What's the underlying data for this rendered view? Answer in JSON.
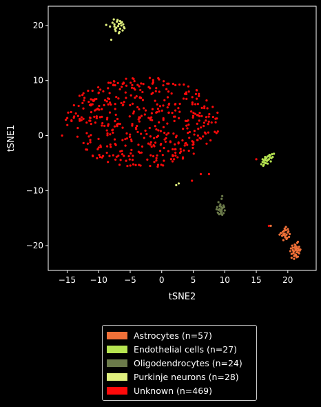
{
  "chart_data": {
    "type": "scatter",
    "xlabel": "tSNE2",
    "ylabel": "tSNE1",
    "xlim": [
      -18,
      24.5
    ],
    "ylim": [
      -24.5,
      23.5
    ],
    "xticks": [
      -15,
      -10,
      -5,
      0,
      5,
      10,
      15,
      20
    ],
    "yticks": [
      -20,
      -10,
      0,
      10,
      20
    ],
    "grid": false,
    "legend_position": "below",
    "series": [
      {
        "name": "Astrocytes (n=57)",
        "color": "#f07038",
        "x": [
          19.2,
          19.5,
          19.8,
          20.0,
          19.6,
          19.3,
          19.9,
          20.1,
          19.4,
          19.7,
          20.2,
          19.5,
          19.1,
          19.8,
          20.0,
          19.6,
          18.9,
          19.3,
          20.3,
          19.7,
          19.4,
          18.7,
          20.5,
          20.8,
          21.0,
          21.2,
          21.4,
          21.6,
          21.8,
          22.0,
          20.6,
          20.9,
          21.1,
          21.3,
          21.5,
          21.7,
          21.9,
          20.7,
          21.0,
          21.2,
          21.4,
          21.6,
          20.4,
          20.8,
          21.1,
          21.3,
          21.5,
          21.7,
          20.6,
          21.0,
          21.2,
          21.4,
          21.8,
          20.9,
          21.3,
          21.6,
          17.3
        ],
        "y": [
          -17.5,
          -17.8,
          -18.0,
          -17.6,
          -18.3,
          -17.9,
          -18.6,
          -17.4,
          -18.1,
          -17.2,
          -18.4,
          -16.9,
          -18.2,
          -18.8,
          -17.0,
          -18.5,
          -17.7,
          -19.0,
          -17.9,
          -16.6,
          -17.3,
          -18.0,
          -20.5,
          -20.8,
          -21.0,
          -20.6,
          -21.2,
          -20.9,
          -21.4,
          -20.7,
          -21.5,
          -21.1,
          -20.3,
          -21.7,
          -20.5,
          -21.3,
          -20.9,
          -20.0,
          -21.9,
          -21.6,
          -20.2,
          -22.0,
          -21.0,
          -20.4,
          -19.8,
          -21.8,
          -19.5,
          -20.6,
          -22.2,
          -22.4,
          -19.9,
          -22.1,
          -20.2,
          -21.4,
          -20.8,
          -19.3,
          -16.4
        ]
      },
      {
        "name": "Endothelial cells (n=27)",
        "color": "#b6e451",
        "x": [
          15.8,
          16.0,
          16.2,
          16.4,
          16.6,
          16.8,
          17.0,
          17.2,
          17.4,
          17.6,
          16.1,
          16.3,
          16.5,
          16.7,
          16.9,
          17.1,
          17.3,
          16.0,
          16.4,
          16.8,
          17.2,
          16.2,
          16.6,
          17.0,
          17.5,
          16.5,
          17.8
        ],
        "y": [
          -5.2,
          -4.8,
          -4.5,
          -4.2,
          -4.0,
          -3.8,
          -4.3,
          -3.6,
          -4.1,
          -3.9,
          -5.5,
          -4.9,
          -5.0,
          -4.6,
          -4.4,
          -3.5,
          -4.7,
          -4.3,
          -3.9,
          -5.1,
          -4.0,
          -5.3,
          -4.1,
          -3.7,
          -3.4,
          -4.5,
          -3.3
        ]
      },
      {
        "name": "Oligodendrocytes (n=24)",
        "color": "#6b7a4a",
        "x": [
          8.8,
          9.0,
          9.2,
          9.4,
          9.6,
          9.8,
          10.0,
          9.1,
          9.3,
          9.5,
          9.7,
          8.9,
          9.2,
          9.4,
          9.6,
          9.9,
          9.0,
          9.3,
          9.5,
          8.7,
          9.8,
          9.4,
          9.6,
          9.5
        ],
        "y": [
          -13.0,
          -13.5,
          -12.8,
          -13.9,
          -13.2,
          -14.1,
          -13.6,
          -14.3,
          -12.5,
          -13.8,
          -13.1,
          -14.0,
          -13.3,
          -12.9,
          -14.4,
          -13.0,
          -12.1,
          -13.7,
          -11.5,
          -13.4,
          -12.7,
          -14.2,
          -11.0,
          -13.5
        ]
      },
      {
        "name": "Purkinje neurons (n=28)",
        "color": "#e0f07e",
        "x": [
          -8.8,
          -8.2,
          -7.8,
          -7.5,
          -7.2,
          -7.0,
          -6.8,
          -6.6,
          -6.4,
          -6.2,
          -6.0,
          -7.4,
          -7.1,
          -6.9,
          -6.7,
          -6.5,
          -7.6,
          -7.3,
          -6.3,
          -5.9,
          -7.0,
          -6.8,
          -7.5,
          -6.1,
          -6.6,
          -8.0,
          2.3,
          2.7
        ],
        "y": [
          20.1,
          19.8,
          20.5,
          20.2,
          19.6,
          21.0,
          20.3,
          19.4,
          20.0,
          19.1,
          19.7,
          19.3,
          20.7,
          19.9,
          18.8,
          20.4,
          21.1,
          19.0,
          20.6,
          19.5,
          20.9,
          18.6,
          19.8,
          20.2,
          20.8,
          17.4,
          -9.0,
          -8.7
        ]
      },
      {
        "name": "Unknown (n=469)",
        "color": "#ff0a0a",
        "generator": {
          "count": 469,
          "center": [
            -3,
            2.5
          ],
          "radius": [
            12.5,
            8.5
          ],
          "outliers": {
            "x": [
              -15.8,
              15,
              17,
              4.8,
              6.2,
              7.5
            ],
            "y": [
              0.0,
              -4.3,
              -16.4,
              -8.2,
              -7.0,
              -7.0
            ]
          }
        }
      }
    ]
  },
  "legend": {
    "items": [
      {
        "label": "Astrocytes (n=57)",
        "color": "#f07038"
      },
      {
        "label": "Endothelial cells (n=27)",
        "color": "#b6e451"
      },
      {
        "label": "Oligodendrocytes (n=24)",
        "color": "#6b7a4a"
      },
      {
        "label": "Purkinje neurons (n=28)",
        "color": "#e0f07e"
      },
      {
        "label": "Unknown (n=469)",
        "color": "#ff0a0a"
      }
    ]
  }
}
